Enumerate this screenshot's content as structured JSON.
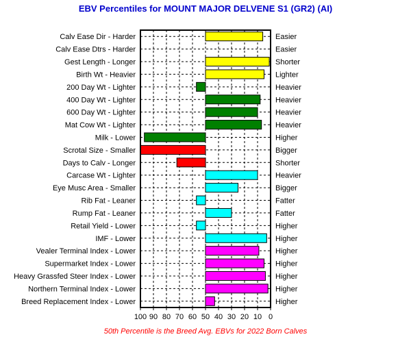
{
  "chart_data": {
    "type": "bar",
    "title": "EBV Percentiles for MOUNT MAJOR DELVENE S1 (GR2) (AI)",
    "footnote": "50th Percentile is the Breed Avg. EBVs for 2022 Born Calves",
    "xlim": [
      100,
      0
    ],
    "baseline": 50,
    "xticks": [
      "100",
      "90",
      "80",
      "70",
      "60",
      "50",
      "40",
      "30",
      "20",
      "10",
      "0"
    ],
    "grid": true,
    "categories": [
      "Calv Ease Dir - Harder",
      "Calv Ease Dtrs - Harder",
      "Gest Length - Longer",
      "Birth Wt - Heavier",
      "200 Day Wt - Lighter",
      "400 Day Wt - Lighter",
      "600 Day Wt - Lighter",
      "Mat Cow Wt - Lighter",
      "Milk - Lower",
      "Scrotal Size - Smaller",
      "Days to Calv - Longer",
      "Carcase Wt - Lighter",
      "Eye Musc Area - Smaller",
      "Rib Fat - Leaner",
      "Rump Fat - Leaner",
      "Retail Yield - Lower",
      "IMF - Lower",
      "Vealer Terminal Index - Lower",
      "Supermarket Index - Lower",
      "Heavy Grassfed Steer Index - Lower",
      "Northern Terminal Index - Lower",
      "Breed Replacement Index - Lower"
    ],
    "right_labels": [
      "Easier",
      "Easier",
      "Shorter",
      "Lighter",
      "Heavier",
      "Heavier",
      "Heavier",
      "Heavier",
      "Higher",
      "Bigger",
      "Shorter",
      "Heavier",
      "Bigger",
      "Fatter",
      "Fatter",
      "Higher",
      "Higher",
      "Higher",
      "Higher",
      "Higher",
      "Higher",
      "Higher"
    ],
    "values": [
      6,
      null,
      1,
      5,
      57,
      8,
      10,
      7,
      97,
      100,
      72,
      10,
      25,
      57,
      30,
      57,
      3,
      9,
      5,
      4,
      2,
      43
    ],
    "colors": [
      "#ffff00",
      "#ffff00",
      "#ffff00",
      "#ffff00",
      "#008000",
      "#008000",
      "#008000",
      "#008000",
      "#008000",
      "#ff0000",
      "#ff0000",
      "#00ffff",
      "#00ffff",
      "#00ffff",
      "#00ffff",
      "#00ffff",
      "#00ffff",
      "#ff00ff",
      "#ff00ff",
      "#ff00ff",
      "#ff00ff",
      "#ff00ff"
    ]
  }
}
